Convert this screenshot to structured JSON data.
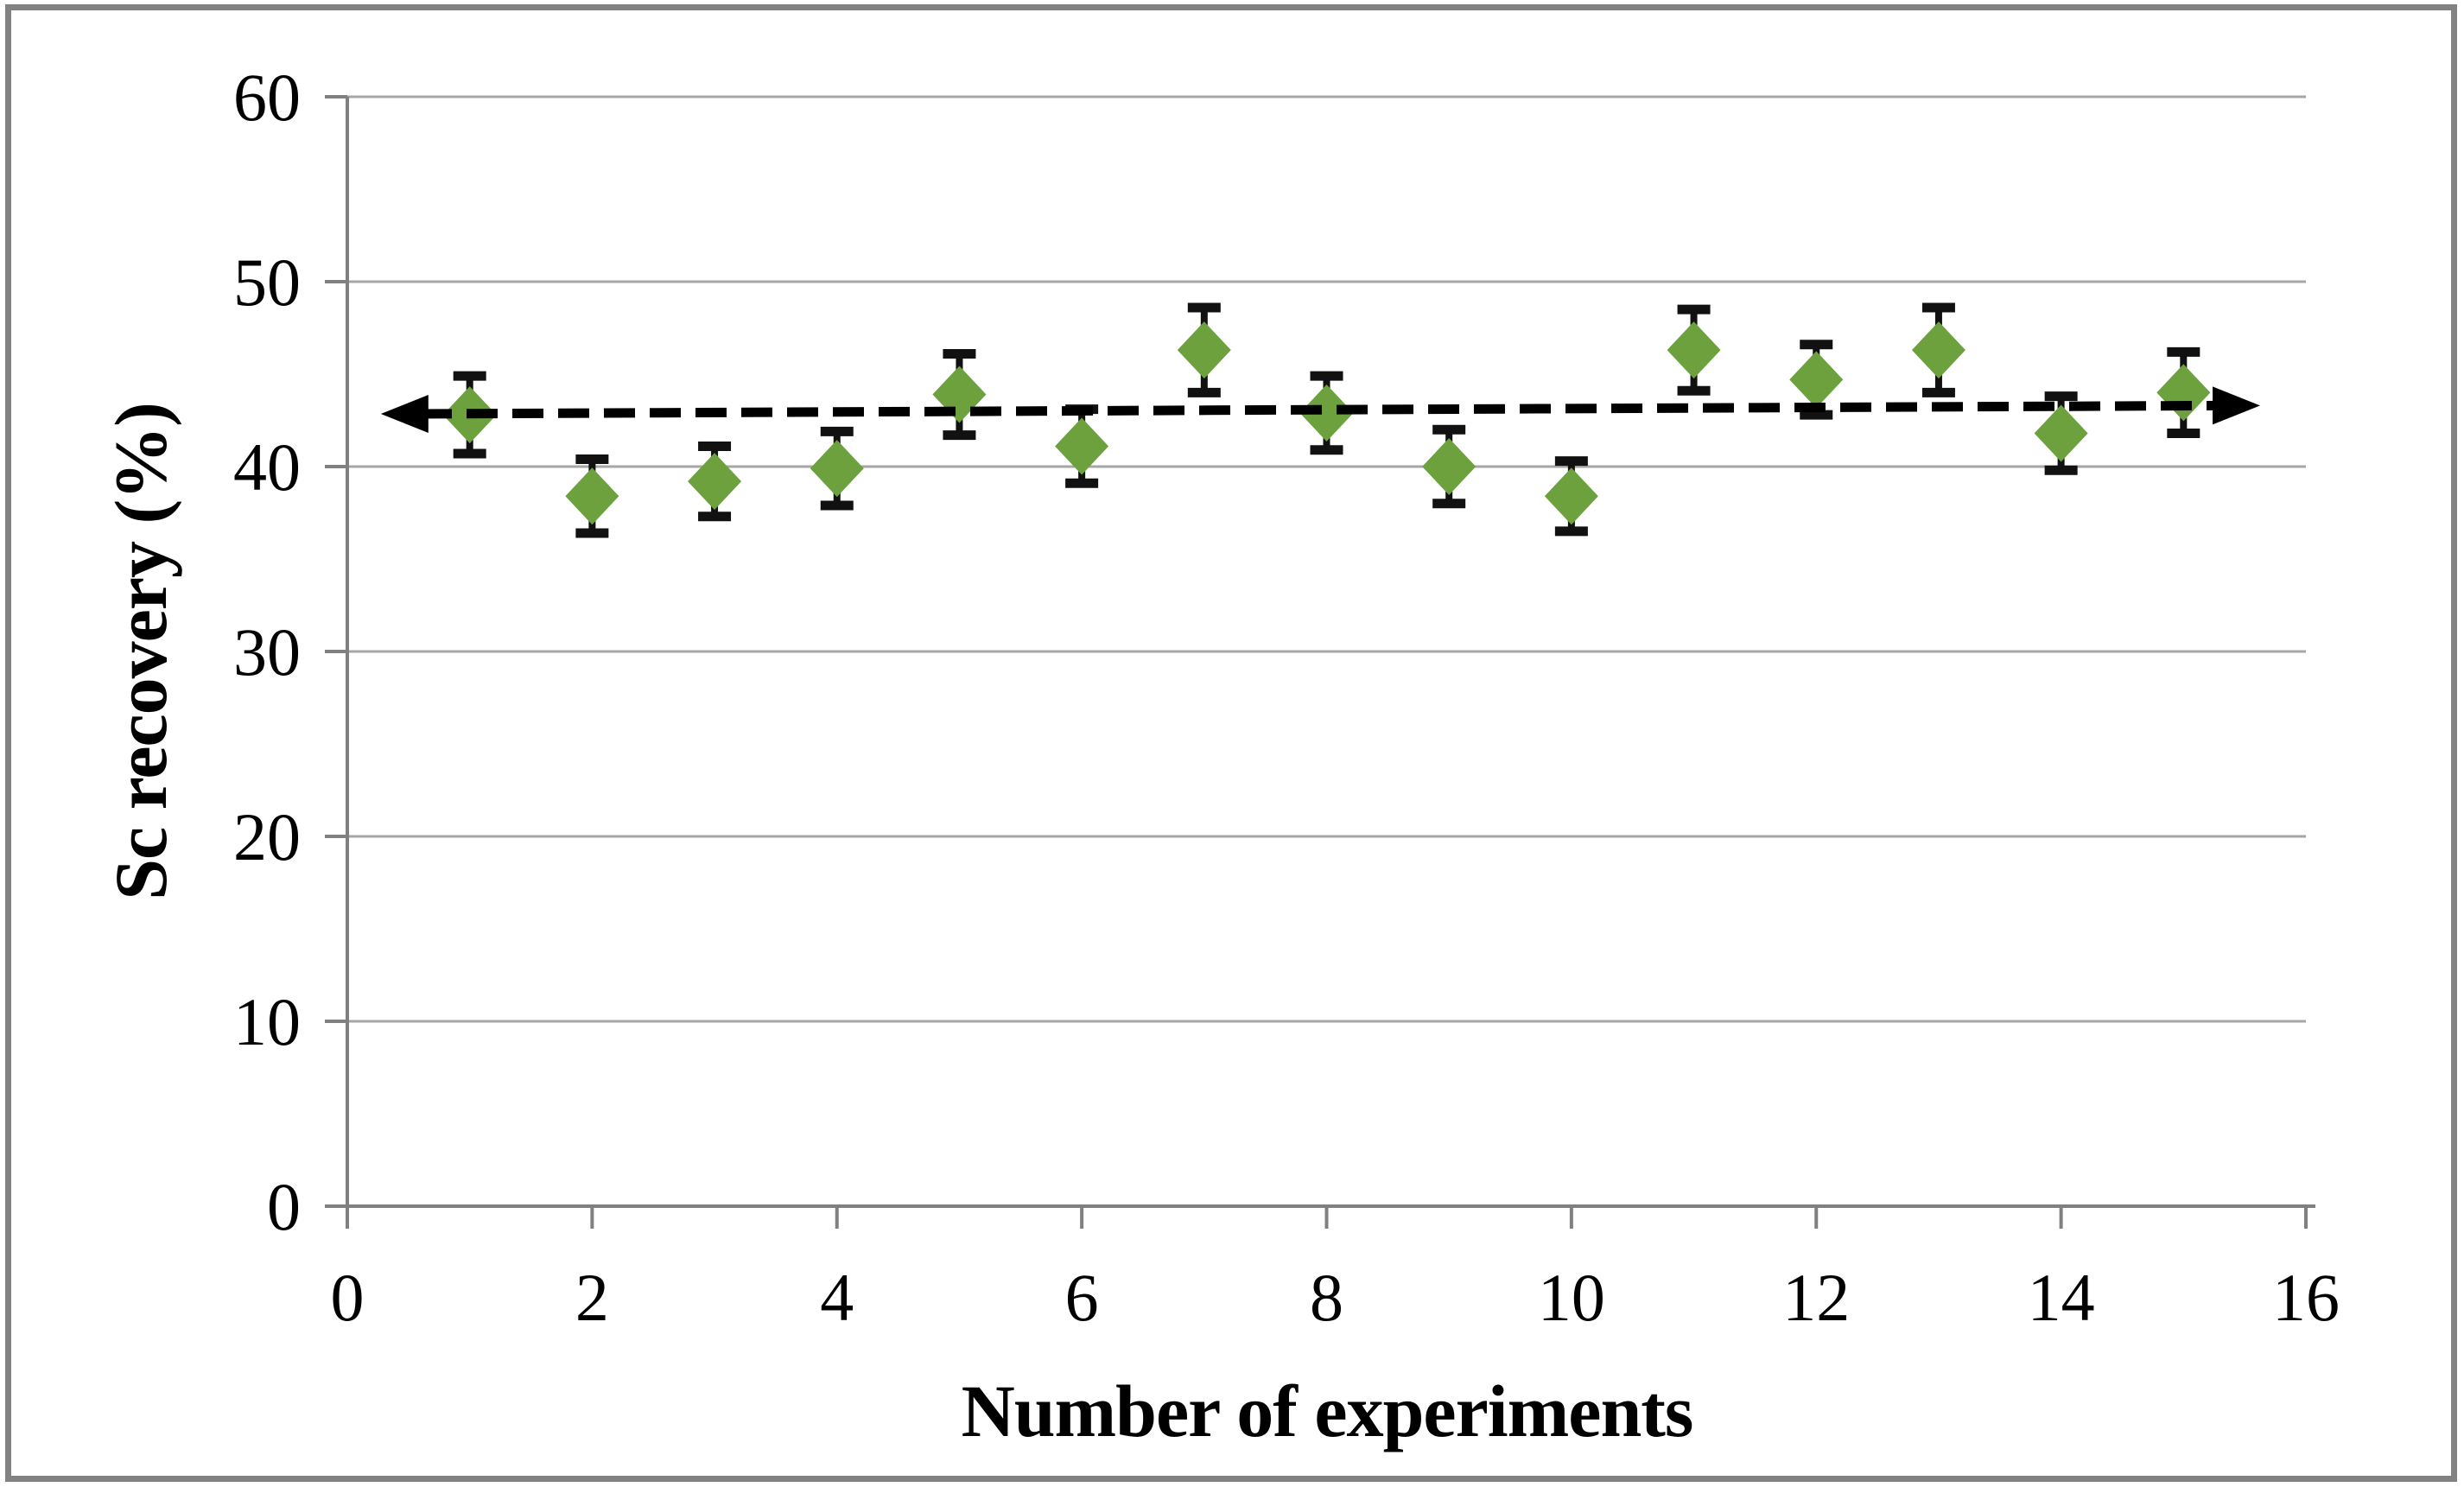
{
  "figure": {
    "background_color": "#ffffff",
    "border_color": "#828282"
  },
  "chart_data": {
    "type": "scatter",
    "title": "",
    "xlabel": "Number of experiments",
    "ylabel": "Sc recovery (%)",
    "x_axis": {
      "min": 0,
      "max": 16,
      "tick_step": 2,
      "tick_labels": [
        "0",
        "2",
        "4",
        "6",
        "8",
        "10",
        "12",
        "14",
        "16"
      ]
    },
    "y_axis": {
      "min": 0,
      "max": 60,
      "tick_step": 10,
      "tick_labels": [
        "0",
        "10",
        "20",
        "30",
        "40",
        "50",
        "60"
      ]
    },
    "grid": "horizontal-only",
    "legend": "none",
    "colors": {
      "marker": "#6ca13e",
      "error_bar": "#111111",
      "trendline": "#000000",
      "gridline": "#a6a6a6",
      "axis_line": "#808080",
      "tick": "#808080",
      "text": "#000000"
    },
    "series": [
      {
        "name": "Sc recovery",
        "marker": "diamond",
        "points": [
          {
            "x": 1,
            "y": 42.8,
            "yerr": 2.1
          },
          {
            "x": 2,
            "y": 38.4,
            "yerr": 2.0
          },
          {
            "x": 3,
            "y": 39.2,
            "yerr": 1.9
          },
          {
            "x": 4,
            "y": 39.9,
            "yerr": 2.0
          },
          {
            "x": 5,
            "y": 43.9,
            "yerr": 2.2
          },
          {
            "x": 6,
            "y": 41.1,
            "yerr": 2.0
          },
          {
            "x": 7,
            "y": 46.3,
            "yerr": 2.3
          },
          {
            "x": 8,
            "y": 42.9,
            "yerr": 2.0
          },
          {
            "x": 9,
            "y": 40.0,
            "yerr": 2.0
          },
          {
            "x": 10,
            "y": 38.4,
            "yerr": 1.9
          },
          {
            "x": 11,
            "y": 46.3,
            "yerr": 2.2
          },
          {
            "x": 12,
            "y": 44.7,
            "yerr": 1.9
          },
          {
            "x": 13,
            "y": 46.3,
            "yerr": 2.3
          },
          {
            "x": 14,
            "y": 41.8,
            "yerr": 2.0
          },
          {
            "x": 15,
            "y": 44.0,
            "yerr": 2.2
          }
        ]
      }
    ],
    "trendline": {
      "style": "dashed",
      "arrows": "both-ends",
      "from": {
        "x": 0.6,
        "y": 42.85
      },
      "to": {
        "x": 15.3,
        "y": 43.3
      }
    }
  }
}
